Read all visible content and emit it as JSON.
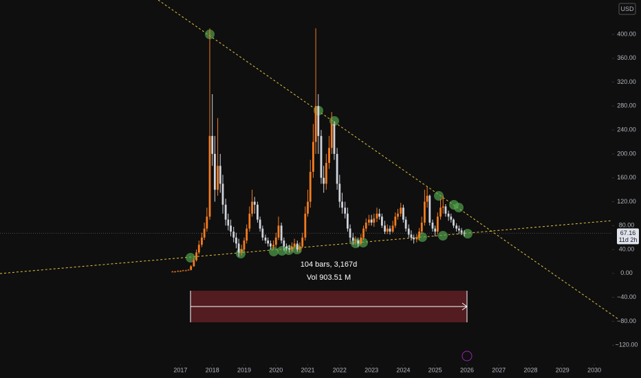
{
  "chart_data": {
    "type": "candlestick",
    "currency": "USD",
    "price_label": "67.16",
    "countdown": "11d 2h",
    "measure": {
      "bars_text": "104 bars, 3,167d",
      "volume_text": "Vol 903.51 M"
    },
    "up_color": "#f57c1f",
    "down_color": "#d1d4dc",
    "xlim": [
      2011.33,
      2030.56
    ],
    "ylim": [
      -152,
      457.5
    ],
    "xticks": [
      2017,
      2018,
      2019,
      2020,
      2021,
      2022,
      2023,
      2024,
      2025,
      2026,
      2027,
      2028,
      2029,
      2030
    ],
    "yticks": [
      {
        "value": -120,
        "label": "−120.00"
      },
      {
        "value": -80,
        "label": "−80.00"
      },
      {
        "value": -40,
        "label": "−40.00"
      },
      {
        "value": 0,
        "label": "0.00"
      },
      {
        "value": 40,
        "label": "40.00"
      },
      {
        "value": 80,
        "label": "80.00"
      },
      {
        "value": 120,
        "label": "120.00"
      },
      {
        "value": 160,
        "label": "160.00"
      },
      {
        "value": 200,
        "label": "200.00"
      },
      {
        "value": 240,
        "label": "240.00"
      },
      {
        "value": 280,
        "label": "280.00"
      },
      {
        "value": 320,
        "label": "320.00"
      },
      {
        "value": 360,
        "label": "360.00"
      },
      {
        "value": 400,
        "label": "400.00"
      }
    ],
    "x": [
      2016.75,
      2016.83,
      2016.92,
      2017.0,
      2017.08,
      2017.17,
      2017.25,
      2017.33,
      2017.42,
      2017.5,
      2017.58,
      2017.67,
      2017.75,
      2017.83,
      2017.92,
      2018.0,
      2018.08,
      2018.17,
      2018.25,
      2018.33,
      2018.42,
      2018.5,
      2018.58,
      2018.67,
      2018.75,
      2018.83,
      2018.92,
      2019.0,
      2019.08,
      2019.17,
      2019.25,
      2019.33,
      2019.42,
      2019.5,
      2019.58,
      2019.67,
      2019.75,
      2019.83,
      2019.92,
      2020.0,
      2020.08,
      2020.17,
      2020.25,
      2020.33,
      2020.42,
      2020.5,
      2020.58,
      2020.67,
      2020.75,
      2020.83,
      2020.92,
      2021.0,
      2021.08,
      2021.17,
      2021.25,
      2021.33,
      2021.42,
      2021.5,
      2021.58,
      2021.67,
      2021.75,
      2021.83,
      2021.92,
      2022.0,
      2022.08,
      2022.17,
      2022.25,
      2022.33,
      2022.42,
      2022.5,
      2022.58,
      2022.67,
      2022.75,
      2022.83,
      2022.92,
      2023.0,
      2023.08,
      2023.17,
      2023.25,
      2023.33,
      2023.42,
      2023.5,
      2023.58,
      2023.67,
      2023.75,
      2023.83,
      2023.92,
      2024.0,
      2024.08,
      2024.17,
      2024.25,
      2024.33,
      2024.42,
      2024.5,
      2024.58,
      2024.67,
      2024.75,
      2024.83,
      2024.92,
      2025.0,
      2025.08,
      2025.17,
      2025.25,
      2025.33,
      2025.42,
      2025.5,
      2025.58,
      2025.67,
      2025.75,
      2025.83,
      2025.92
    ],
    "open": [
      3,
      3,
      3,
      4,
      4,
      5,
      5,
      6,
      12,
      22,
      35,
      48,
      60,
      75,
      95,
      230,
      200,
      140,
      180,
      150,
      115,
      90,
      80,
      70,
      60,
      50,
      35,
      40,
      55,
      75,
      100,
      120,
      115,
      90,
      75,
      60,
      55,
      50,
      45,
      48,
      60,
      80,
      55,
      45,
      42,
      40,
      45,
      50,
      40,
      45,
      60,
      100,
      120,
      170,
      220,
      280,
      230,
      160,
      150,
      185,
      210,
      250,
      200,
      150,
      120,
      110,
      100,
      75,
      60,
      55,
      55,
      50,
      60,
      75,
      85,
      90,
      85,
      92,
      100,
      95,
      80,
      70,
      75,
      70,
      80,
      95,
      100,
      110,
      90,
      75,
      65,
      60,
      57,
      60,
      70,
      85,
      120,
      130,
      85,
      75,
      70,
      95,
      110,
      112,
      100,
      95,
      90,
      80,
      75,
      72,
      68
    ],
    "high": [
      4,
      4,
      5,
      5,
      6,
      6,
      7,
      14,
      26,
      40,
      55,
      68,
      85,
      110,
      410,
      300,
      230,
      260,
      200,
      165,
      125,
      100,
      90,
      78,
      68,
      58,
      48,
      60,
      82,
      112,
      140,
      128,
      120,
      95,
      80,
      65,
      60,
      55,
      55,
      68,
      95,
      85,
      60,
      50,
      48,
      52,
      58,
      55,
      52,
      68,
      112,
      140,
      190,
      250,
      410,
      300,
      240,
      180,
      200,
      230,
      270,
      255,
      210,
      165,
      135,
      120,
      110,
      82,
      68,
      62,
      60,
      66,
      80,
      92,
      98,
      98,
      100,
      110,
      108,
      100,
      88,
      82,
      80,
      88,
      102,
      108,
      118,
      115,
      95,
      82,
      72,
      65,
      66,
      76,
      95,
      140,
      145,
      132,
      90,
      80,
      102,
      125,
      130,
      116,
      105,
      100,
      92,
      84,
      80,
      76,
      72
    ],
    "low": [
      2,
      2,
      3,
      3,
      4,
      4,
      5,
      5,
      11,
      20,
      32,
      44,
      56,
      70,
      90,
      180,
      120,
      130,
      135,
      100,
      80,
      72,
      62,
      52,
      42,
      28,
      30,
      36,
      50,
      70,
      95,
      100,
      85,
      70,
      55,
      50,
      45,
      40,
      40,
      44,
      56,
      50,
      38,
      38,
      35,
      36,
      42,
      36,
      35,
      42,
      55,
      95,
      110,
      160,
      200,
      200,
      150,
      135,
      140,
      175,
      200,
      190,
      140,
      110,
      100,
      92,
      70,
      52,
      48,
      48,
      44,
      48,
      56,
      70,
      80,
      80,
      78,
      86,
      90,
      76,
      66,
      66,
      65,
      68,
      76,
      90,
      95,
      85,
      70,
      60,
      55,
      50,
      52,
      56,
      66,
      80,
      110,
      80,
      70,
      62,
      65,
      90,
      100,
      95,
      88,
      85,
      76,
      70,
      66,
      64,
      62
    ],
    "close": [
      3,
      3,
      4,
      4,
      5,
      5,
      6,
      12,
      22,
      35,
      48,
      60,
      75,
      95,
      230,
      200,
      140,
      180,
      150,
      115,
      90,
      80,
      70,
      60,
      50,
      35,
      40,
      55,
      75,
      100,
      120,
      115,
      90,
      75,
      60,
      55,
      50,
      45,
      48,
      60,
      80,
      55,
      45,
      42,
      40,
      45,
      50,
      40,
      45,
      60,
      100,
      120,
      170,
      220,
      280,
      230,
      160,
      150,
      185,
      210,
      250,
      200,
      150,
      120,
      110,
      100,
      75,
      60,
      55,
      55,
      50,
      60,
      75,
      85,
      90,
      85,
      92,
      100,
      95,
      80,
      70,
      75,
      70,
      80,
      95,
      100,
      110,
      90,
      75,
      65,
      60,
      57,
      60,
      70,
      85,
      120,
      130,
      85,
      75,
      70,
      95,
      110,
      112,
      100,
      95,
      90,
      80,
      75,
      72,
      68,
      67.16
    ]
  }
}
